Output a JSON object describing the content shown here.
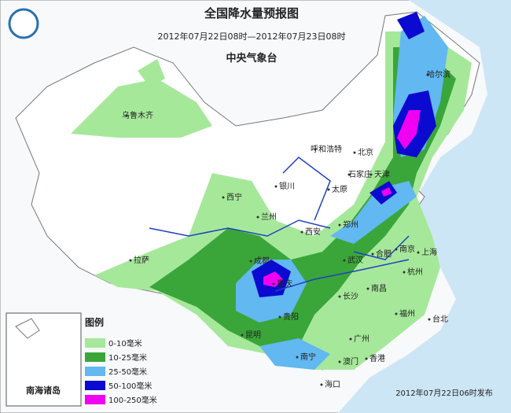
{
  "header": {
    "title": "全国降水量预报图",
    "subtitle": "2012年07月22日08时—2012年07月23日08时",
    "agency": "中央气象台"
  },
  "cities": [
    "乌鲁木齐",
    "哈尔滨",
    "呼和浩特",
    "北京",
    "天津",
    "石家庄",
    "太原",
    "银川",
    "西宁",
    "兰州",
    "西安",
    "郑州",
    "拉萨",
    "成都",
    "重庆",
    "武汉",
    "合肥",
    "南京",
    "上海",
    "杭州",
    "长沙",
    "南昌",
    "福州",
    "台北",
    "贵阳",
    "昆明",
    "南宁",
    "广州",
    "澳门",
    "香港",
    "海口"
  ],
  "legend": {
    "title": "图例",
    "items": [
      {
        "label": "0-10毫米",
        "color": "#a6e89a"
      },
      {
        "label": "10-25毫米",
        "color": "#3aa63a"
      },
      {
        "label": "25-50毫米",
        "color": "#62b8f0"
      },
      {
        "label": "50-100毫米",
        "color": "#0a0ad0"
      },
      {
        "label": "100-250毫米",
        "color": "#f000f0"
      }
    ]
  },
  "inset": {
    "label": "南海诸岛"
  },
  "footer": {
    "issued": "2012年07月22日06时发布"
  }
}
